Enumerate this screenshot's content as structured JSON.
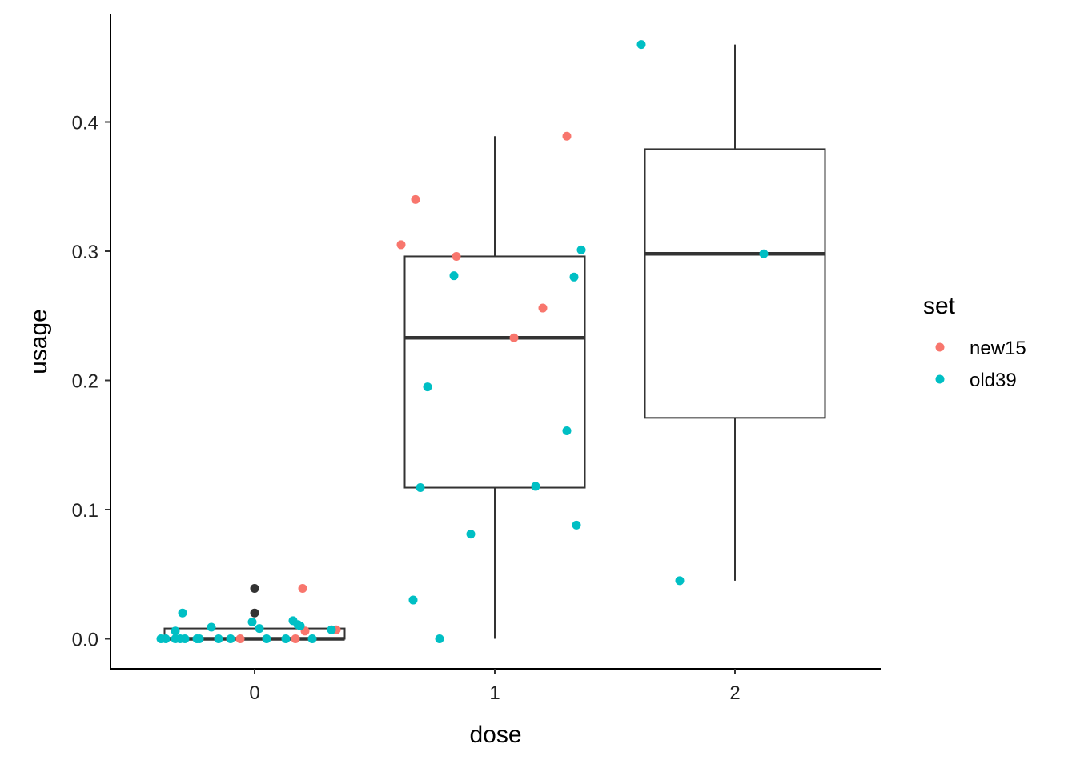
{
  "chart_data": {
    "type": "scatter",
    "overlay": "boxplot",
    "xlabel": "dose",
    "ylabel": "usage",
    "categories": [
      "0",
      "1",
      "2"
    ],
    "y_ticks": [
      "0.0",
      "0.1",
      "0.2",
      "0.3",
      "0.4"
    ],
    "ylim": [
      -0.023,
      0.478
    ],
    "grid": false,
    "legend": {
      "title": "set",
      "position": "right",
      "entries": [
        "new15",
        "old39"
      ]
    },
    "colors": {
      "new15": "#F8766D",
      "old39": "#00BFC4",
      "unassigned": "#333333",
      "box": "#333333"
    },
    "boxes": [
      {
        "category": "0",
        "q1": 0.0,
        "median": 0.0,
        "q3": 0.008,
        "whisker_low": 0.0,
        "whisker_high": 0.008
      },
      {
        "category": "1",
        "q1": 0.117,
        "median": 0.233,
        "q3": 0.296,
        "whisker_low": 0.0,
        "whisker_high": 0.389
      },
      {
        "category": "2",
        "q1": 0.171,
        "median": 0.298,
        "q3": 0.379,
        "whisker_low": 0.045,
        "whisker_high": 0.46
      }
    ],
    "series": [
      {
        "name": "new15",
        "points": [
          {
            "x": -0.06,
            "y": 0.0
          },
          {
            "x": 0.17,
            "y": 0.0
          },
          {
            "x": 0.2,
            "y": 0.039
          },
          {
            "x": 0.21,
            "y": 0.006
          },
          {
            "x": 0.34,
            "y": 0.007
          },
          {
            "x": 0.61,
            "y": 0.305
          },
          {
            "x": 0.67,
            "y": 0.34
          },
          {
            "x": 0.84,
            "y": 0.296
          },
          {
            "x": 1.08,
            "y": 0.233
          },
          {
            "x": 1.2,
            "y": 0.256
          },
          {
            "x": 1.3,
            "y": 0.389
          }
        ]
      },
      {
        "name": "old39",
        "points": [
          {
            "x": -0.39,
            "y": 0.0
          },
          {
            "x": -0.37,
            "y": 0.0
          },
          {
            "x": -0.33,
            "y": 0.006
          },
          {
            "x": -0.33,
            "y": 0.0
          },
          {
            "x": -0.31,
            "y": 0.0
          },
          {
            "x": -0.3,
            "y": 0.02
          },
          {
            "x": -0.29,
            "y": 0.0
          },
          {
            "x": -0.24,
            "y": 0.0
          },
          {
            "x": -0.23,
            "y": 0.0
          },
          {
            "x": -0.18,
            "y": 0.009
          },
          {
            "x": -0.15,
            "y": 0.0
          },
          {
            "x": -0.1,
            "y": 0.0
          },
          {
            "x": -0.01,
            "y": 0.013
          },
          {
            "x": 0.02,
            "y": 0.008
          },
          {
            "x": 0.05,
            "y": 0.0
          },
          {
            "x": 0.13,
            "y": 0.0
          },
          {
            "x": 0.16,
            "y": 0.014
          },
          {
            "x": 0.18,
            "y": 0.011
          },
          {
            "x": 0.19,
            "y": 0.01
          },
          {
            "x": 0.24,
            "y": 0.0
          },
          {
            "x": 0.32,
            "y": 0.007
          },
          {
            "x": 0.66,
            "y": 0.03
          },
          {
            "x": 0.69,
            "y": 0.117
          },
          {
            "x": 0.72,
            "y": 0.195
          },
          {
            "x": 0.77,
            "y": 0.0
          },
          {
            "x": 0.83,
            "y": 0.281
          },
          {
            "x": 0.9,
            "y": 0.081
          },
          {
            "x": 1.17,
            "y": 0.118
          },
          {
            "x": 1.3,
            "y": 0.161
          },
          {
            "x": 1.33,
            "y": 0.28
          },
          {
            "x": 1.34,
            "y": 0.088
          },
          {
            "x": 1.36,
            "y": 0.301
          },
          {
            "x": 1.61,
            "y": 0.46
          },
          {
            "x": 1.77,
            "y": 0.045
          },
          {
            "x": 2.12,
            "y": 0.298
          }
        ]
      },
      {
        "points": [
          {
            "x": 0.0,
            "y": 0.039
          },
          {
            "x": 0.0,
            "y": 0.02
          }
        ]
      }
    ]
  }
}
